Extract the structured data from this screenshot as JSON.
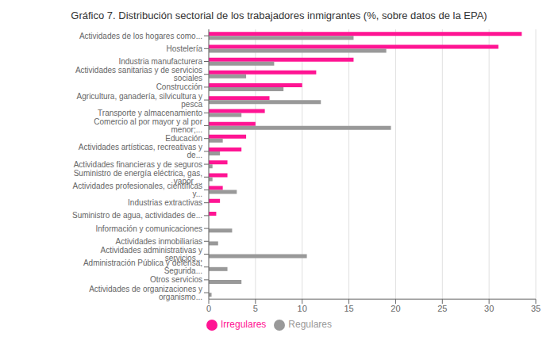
{
  "chart_data": {
    "type": "bar",
    "orientation": "horizontal",
    "title": "Gráfico 7. Distribución sectorial de los trabajadores inmigrantes (%, sobre datos de la EPA)",
    "categories": [
      "Actividades de los hogares como...",
      "Hostelería",
      "Industria manufacturera",
      "Actividades sanitarias y de servicios sociales",
      "Construcción",
      "Agricultura, ganadería, silvicultura y pesca",
      "Transporte y almacenamiento",
      "Comercio al por mayor y al por menor;...",
      "Educación",
      "Actividades artísticas, recreativas y de...",
      "Actividades financieras y de seguros",
      "Suministro de energía eléctrica, gas, vapor ...",
      "Actividades profesionales, científicas y...",
      "Industrias extractivas",
      "Suministro de agua, actividades de...",
      "Información y comunicaciones",
      "Actividades inmobiliarias",
      "Actividades administrativas y servicios...",
      "Administración Pública y defensa; Segurida...",
      "Otros servicios",
      "Actividades de organizaciones y organismo..."
    ],
    "series": [
      {
        "name": "Irregulares",
        "color": "#FF1493",
        "values": [
          33.5,
          31.0,
          15.5,
          11.5,
          10.0,
          6.5,
          6.0,
          5.0,
          4.0,
          3.5,
          2.0,
          2.0,
          1.5,
          1.2,
          0.8,
          0,
          0,
          0,
          0,
          0,
          0
        ]
      },
      {
        "name": "Regulares",
        "color": "#999999",
        "values": [
          15.5,
          19.0,
          7.0,
          4.0,
          8.0,
          12.0,
          3.5,
          19.5,
          1.5,
          1.2,
          0.4,
          0.4,
          3.0,
          0,
          0,
          2.5,
          1.0,
          10.5,
          2.0,
          3.5,
          0.3
        ]
      }
    ],
    "xlim": [
      0,
      35
    ],
    "xticks": [
      0,
      5,
      10,
      15,
      20,
      25,
      30,
      35
    ],
    "grid": true,
    "legend": "bottom"
  }
}
